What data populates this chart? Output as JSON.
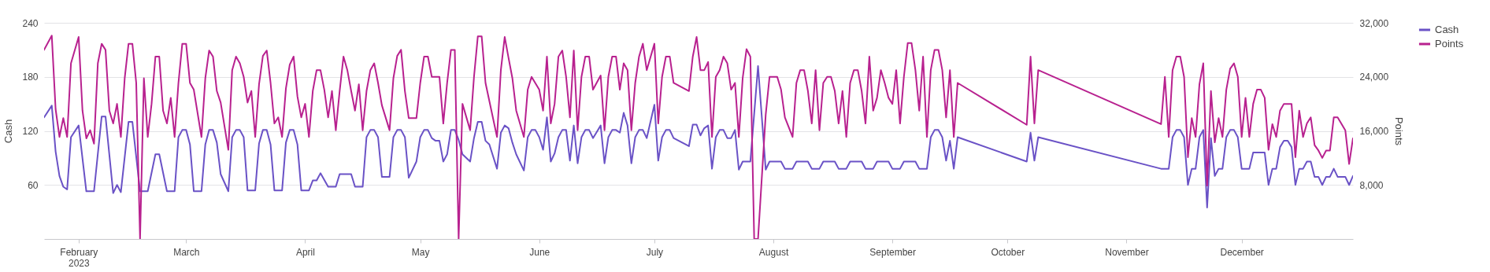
{
  "chart_data": {
    "type": "line",
    "ylabel": "Cash",
    "y2label": "Points",
    "legend": "right",
    "grid": "y",
    "line_style": "solid",
    "xlim": [
      "2023-01-23",
      "2023-12-30"
    ],
    "xticks": [
      {
        "value": "2023-02-01",
        "label": "February\n2023"
      },
      {
        "value": "2023-03-01",
        "label": "March"
      },
      {
        "value": "2023-04-01",
        "label": "April"
      },
      {
        "value": "2023-05-01",
        "label": "May"
      },
      {
        "value": "2023-06-01",
        "label": "June"
      },
      {
        "value": "2023-07-01",
        "label": "July"
      },
      {
        "value": "2023-08-01",
        "label": "August"
      },
      {
        "value": "2023-09-01",
        "label": "September"
      },
      {
        "value": "2023-10-01",
        "label": "October"
      },
      {
        "value": "2023-11-01",
        "label": "November"
      },
      {
        "value": "2023-12-01",
        "label": "December"
      }
    ],
    "ylim": [
      0,
      240
    ],
    "yticks": [
      60,
      120,
      180,
      240
    ],
    "y2lim": [
      0,
      32000
    ],
    "y2ticks": [
      {
        "value": 8000,
        "label": "8,000"
      },
      {
        "value": 16000,
        "label": "16,000"
      },
      {
        "value": 24000,
        "label": "24,000"
      },
      {
        "value": 32000,
        "label": "32,000"
      }
    ],
    "series": [
      {
        "name": "Cash",
        "color": "#6a52c6",
        "x": [
          "2023-01-23",
          "2023-01-25",
          "2023-01-26",
          "2023-01-27",
          "2023-01-28",
          "2023-01-29",
          "2023-01-30",
          "2023-02-01",
          "2023-02-03",
          "2023-02-05",
          "2023-02-07",
          "2023-02-08",
          "2023-02-10",
          "2023-02-11",
          "2023-02-12",
          "2023-02-14",
          "2023-02-15",
          "2023-02-17",
          "2023-02-19",
          "2023-02-21",
          "2023-02-22",
          "2023-02-24",
          "2023-02-26",
          "2023-02-27",
          "2023-02-28",
          "2023-03-01",
          "2023-03-02",
          "2023-03-03",
          "2023-03-05",
          "2023-03-06",
          "2023-03-07",
          "2023-03-08",
          "2023-03-09",
          "2023-03-10",
          "2023-03-12",
          "2023-03-13",
          "2023-03-14",
          "2023-03-15",
          "2023-03-16",
          "2023-03-17",
          "2023-03-19",
          "2023-03-20",
          "2023-03-21",
          "2023-03-22",
          "2023-03-23",
          "2023-03-24",
          "2023-03-26",
          "2023-03-27",
          "2023-03-28",
          "2023-03-29",
          "2023-03-30",
          "2023-03-31",
          "2023-04-02",
          "2023-04-03",
          "2023-04-04",
          "2023-04-05",
          "2023-04-07",
          "2023-04-09",
          "2023-04-10",
          "2023-04-13",
          "2023-04-14",
          "2023-04-16",
          "2023-04-17",
          "2023-04-18",
          "2023-04-19",
          "2023-04-20",
          "2023-04-21",
          "2023-04-23",
          "2023-04-24",
          "2023-04-25",
          "2023-04-26",
          "2023-04-27",
          "2023-04-28",
          "2023-04-30",
          "2023-05-01",
          "2023-05-02",
          "2023-05-03",
          "2023-05-04",
          "2023-05-05",
          "2023-05-06",
          "2023-05-07",
          "2023-05-08",
          "2023-05-09",
          "2023-05-10",
          "2023-05-11",
          "2023-05-12",
          "2023-05-14",
          "2023-05-15",
          "2023-05-16",
          "2023-05-17",
          "2023-05-18",
          "2023-05-19",
          "2023-05-21",
          "2023-05-22",
          "2023-05-23",
          "2023-05-24",
          "2023-05-25",
          "2023-05-26",
          "2023-05-28",
          "2023-05-29",
          "2023-05-30",
          "2023-05-31",
          "2023-06-01",
          "2023-06-02",
          "2023-06-03",
          "2023-06-04",
          "2023-06-05",
          "2023-06-06",
          "2023-06-07",
          "2023-06-08",
          "2023-06-09",
          "2023-06-10",
          "2023-06-11",
          "2023-06-12",
          "2023-06-13",
          "2023-06-14",
          "2023-06-15",
          "2023-06-16",
          "2023-06-17",
          "2023-06-18",
          "2023-06-19",
          "2023-06-20",
          "2023-06-21",
          "2023-06-22",
          "2023-06-23",
          "2023-06-24",
          "2023-06-25",
          "2023-06-26",
          "2023-06-27",
          "2023-06-28",
          "2023-06-29",
          "2023-07-01",
          "2023-07-02",
          "2023-07-03",
          "2023-07-04",
          "2023-07-05",
          "2023-07-06",
          "2023-07-10",
          "2023-07-11",
          "2023-07-12",
          "2023-07-13",
          "2023-07-14",
          "2023-07-15",
          "2023-07-16",
          "2023-07-17",
          "2023-07-18",
          "2023-07-19",
          "2023-07-20",
          "2023-07-21",
          "2023-07-22",
          "2023-07-23",
          "2023-07-24",
          "2023-07-26",
          "2023-07-28",
          "2023-07-30",
          "2023-07-31",
          "2023-08-03",
          "2023-08-04",
          "2023-08-06",
          "2023-08-07",
          "2023-08-10",
          "2023-08-11",
          "2023-08-13",
          "2023-08-14",
          "2023-08-17",
          "2023-08-18",
          "2023-08-20",
          "2023-08-21",
          "2023-08-24",
          "2023-08-25",
          "2023-08-27",
          "2023-08-28",
          "2023-08-31",
          "2023-09-01",
          "2023-09-03",
          "2023-09-04",
          "2023-09-07",
          "2023-09-08",
          "2023-09-10",
          "2023-09-11",
          "2023-09-12",
          "2023-09-13",
          "2023-09-14",
          "2023-09-15",
          "2023-09-16",
          "2023-09-17",
          "2023-09-18",
          "2023-10-06",
          "2023-10-07",
          "2023-10-08",
          "2023-10-09",
          "2023-11-10",
          "2023-11-12",
          "2023-11-13",
          "2023-11-14",
          "2023-11-15",
          "2023-11-16",
          "2023-11-17",
          "2023-11-18",
          "2023-11-19",
          "2023-11-20",
          "2023-11-21",
          "2023-11-22",
          "2023-11-23",
          "2023-11-24",
          "2023-11-25",
          "2023-11-26",
          "2023-11-27",
          "2023-11-28",
          "2023-11-29",
          "2023-11-30",
          "2023-12-01",
          "2023-12-03",
          "2023-12-04",
          "2023-12-07",
          "2023-12-08",
          "2023-12-09",
          "2023-12-10",
          "2023-12-11",
          "2023-12-12",
          "2023-12-13",
          "2023-12-14",
          "2023-12-15",
          "2023-12-16",
          "2023-12-17",
          "2023-12-18",
          "2023-12-19",
          "2023-12-20",
          "2023-12-21",
          "2023-12-22",
          "2023-12-23",
          "2023-12-24",
          "2023-12-25",
          "2023-12-26",
          "2023-12-28",
          "2023-12-29",
          "2023-12-30"
        ],
        "values": [
          135,
          148,
          97,
          70,
          58,
          55,
          113,
          126,
          53,
          53,
          136,
          136,
          51,
          60,
          52,
          130,
          130,
          53,
          53,
          94,
          94,
          53,
          53,
          113,
          121,
          121,
          105,
          53,
          53,
          105,
          121,
          121,
          107,
          72,
          53,
          113,
          121,
          121,
          113,
          54,
          54,
          106,
          121,
          121,
          105,
          54,
          54,
          107,
          121,
          121,
          105,
          54,
          54,
          65,
          65,
          73,
          58,
          58,
          72,
          72,
          58,
          58,
          113,
          121,
          121,
          113,
          69,
          69,
          113,
          121,
          121,
          113,
          68,
          86,
          113,
          121,
          121,
          112,
          109,
          109,
          86,
          94,
          121,
          121,
          110,
          94,
          86,
          112,
          130,
          130,
          109,
          105,
          78,
          118,
          126,
          123,
          107,
          94,
          76,
          113,
          121,
          121,
          113,
          99,
          135,
          86,
          95,
          113,
          121,
          121,
          87,
          126,
          84,
          113,
          121,
          121,
          112,
          119,
          126,
          84,
          113,
          121,
          121,
          118,
          140,
          126,
          84,
          113,
          121,
          121,
          112,
          149,
          87,
          113,
          121,
          121,
          112,
          103,
          127,
          127,
          115,
          123,
          126,
          78,
          113,
          121,
          121,
          112,
          112,
          121,
          77,
          86,
          86,
          192,
          77,
          86,
          86,
          78,
          78,
          86,
          86,
          78,
          78,
          86,
          86,
          78,
          78,
          86,
          86,
          78,
          78,
          86,
          86,
          78,
          78,
          86,
          86,
          78,
          78,
          113,
          121,
          121,
          113,
          87,
          109,
          78,
          113,
          86,
          118,
          87,
          113,
          78,
          78,
          113,
          121,
          121,
          113,
          60,
          78,
          78,
          113,
          121,
          35,
          112,
          70,
          78,
          78,
          113,
          121,
          121,
          113,
          78,
          78,
          96,
          96,
          60,
          78,
          78,
          102,
          109,
          109,
          102,
          60,
          78,
          78,
          86,
          86,
          69,
          69,
          60,
          69,
          69,
          78,
          69,
          69,
          60,
          70
        ]
      },
      {
        "name": "Points",
        "color": "#b8218f",
        "axis": "y2",
        "x": [
          "2023-01-23",
          "2023-01-25",
          "2023-01-26",
          "2023-01-27",
          "2023-01-28",
          "2023-01-29",
          "2023-01-30",
          "2023-02-01",
          "2023-02-02",
          "2023-02-03",
          "2023-02-04",
          "2023-02-05",
          "2023-02-06",
          "2023-02-07",
          "2023-02-08",
          "2023-02-09",
          "2023-02-10",
          "2023-02-11",
          "2023-02-12",
          "2023-02-13",
          "2023-02-14",
          "2023-02-15",
          "2023-02-16",
          "2023-02-17",
          "2023-02-18",
          "2023-02-19",
          "2023-02-20",
          "2023-02-21",
          "2023-02-22",
          "2023-02-23",
          "2023-02-24",
          "2023-02-25",
          "2023-02-26",
          "2023-02-27",
          "2023-02-28",
          "2023-03-01",
          "2023-03-02",
          "2023-03-03",
          "2023-03-05",
          "2023-03-06",
          "2023-03-07",
          "2023-03-08",
          "2023-03-09",
          "2023-03-10",
          "2023-03-12",
          "2023-03-13",
          "2023-03-14",
          "2023-03-15",
          "2023-03-16",
          "2023-03-17",
          "2023-03-18",
          "2023-03-19",
          "2023-03-20",
          "2023-03-21",
          "2023-03-22",
          "2023-03-23",
          "2023-03-24",
          "2023-03-25",
          "2023-03-26",
          "2023-03-27",
          "2023-03-28",
          "2023-03-29",
          "2023-03-30",
          "2023-03-31",
          "2023-04-01",
          "2023-04-02",
          "2023-04-03",
          "2023-04-04",
          "2023-04-05",
          "2023-04-06",
          "2023-04-07",
          "2023-04-08",
          "2023-04-09",
          "2023-04-10",
          "2023-04-11",
          "2023-04-12",
          "2023-04-13",
          "2023-04-14",
          "2023-04-15",
          "2023-04-16",
          "2023-04-17",
          "2023-04-18",
          "2023-04-19",
          "2023-04-20",
          "2023-04-21",
          "2023-04-23",
          "2023-04-24",
          "2023-04-25",
          "2023-04-26",
          "2023-04-27",
          "2023-04-28",
          "2023-04-30",
          "2023-05-01",
          "2023-05-02",
          "2023-05-03",
          "2023-05-04",
          "2023-05-06",
          "2023-05-07",
          "2023-05-08",
          "2023-05-09",
          "2023-05-10",
          "2023-05-11",
          "2023-05-12",
          "2023-05-14",
          "2023-05-15",
          "2023-05-16",
          "2023-05-17",
          "2023-05-18",
          "2023-05-21",
          "2023-05-22",
          "2023-05-23",
          "2023-05-24",
          "2023-05-25",
          "2023-05-26",
          "2023-05-28",
          "2023-05-29",
          "2023-05-30",
          "2023-06-01",
          "2023-06-02",
          "2023-06-03",
          "2023-06-04",
          "2023-06-05",
          "2023-06-06",
          "2023-06-07",
          "2023-06-08",
          "2023-06-09",
          "2023-06-10",
          "2023-06-11",
          "2023-06-12",
          "2023-06-13",
          "2023-06-14",
          "2023-06-15",
          "2023-06-17",
          "2023-06-18",
          "2023-06-19",
          "2023-06-20",
          "2023-06-21",
          "2023-06-22",
          "2023-06-23",
          "2023-06-24",
          "2023-06-25",
          "2023-06-26",
          "2023-06-27",
          "2023-06-28",
          "2023-06-29",
          "2023-07-01",
          "2023-07-02",
          "2023-07-03",
          "2023-07-04",
          "2023-07-05",
          "2023-07-06",
          "2023-07-10",
          "2023-07-11",
          "2023-07-12",
          "2023-07-13",
          "2023-07-14",
          "2023-07-15",
          "2023-07-16",
          "2023-07-17",
          "2023-07-18",
          "2023-07-19",
          "2023-07-20",
          "2023-07-21",
          "2023-07-22",
          "2023-07-23",
          "2023-07-24",
          "2023-07-25",
          "2023-07-26",
          "2023-07-27",
          "2023-07-28",
          "2023-07-30",
          "2023-07-31",
          "2023-08-02",
          "2023-08-03",
          "2023-08-04",
          "2023-08-06",
          "2023-08-07",
          "2023-08-08",
          "2023-08-09",
          "2023-08-10",
          "2023-08-11",
          "2023-08-12",
          "2023-08-13",
          "2023-08-14",
          "2023-08-15",
          "2023-08-16",
          "2023-08-17",
          "2023-08-18",
          "2023-08-19",
          "2023-08-20",
          "2023-08-21",
          "2023-08-22",
          "2023-08-23",
          "2023-08-24",
          "2023-08-25",
          "2023-08-26",
          "2023-08-27",
          "2023-08-28",
          "2023-08-29",
          "2023-08-30",
          "2023-08-31",
          "2023-09-01",
          "2023-09-02",
          "2023-09-03",
          "2023-09-04",
          "2023-09-05",
          "2023-09-06",
          "2023-09-07",
          "2023-09-08",
          "2023-09-09",
          "2023-09-10",
          "2023-09-11",
          "2023-09-12",
          "2023-09-13",
          "2023-09-14",
          "2023-09-15",
          "2023-09-16",
          "2023-09-17",
          "2023-09-18",
          "2023-10-06",
          "2023-10-07",
          "2023-10-08",
          "2023-10-09",
          "2023-11-10",
          "2023-11-11",
          "2023-11-12",
          "2023-11-13",
          "2023-11-14",
          "2023-11-15",
          "2023-11-16",
          "2023-11-17",
          "2023-11-18",
          "2023-11-19",
          "2023-11-20",
          "2023-11-21",
          "2023-11-22",
          "2023-11-23",
          "2023-11-24",
          "2023-11-25",
          "2023-11-26",
          "2023-11-27",
          "2023-11-28",
          "2023-11-29",
          "2023-11-30",
          "2023-12-01",
          "2023-12-02",
          "2023-12-03",
          "2023-12-04",
          "2023-12-05",
          "2023-12-06",
          "2023-12-07",
          "2023-12-08",
          "2023-12-09",
          "2023-12-10",
          "2023-12-11",
          "2023-12-12",
          "2023-12-14",
          "2023-12-15",
          "2023-12-16",
          "2023-12-17",
          "2023-12-18",
          "2023-12-19",
          "2023-12-20",
          "2023-12-21",
          "2023-12-22",
          "2023-12-23",
          "2023-12-24",
          "2023-12-25",
          "2023-12-26",
          "2023-12-28",
          "2023-12-29",
          "2023-12-30"
        ],
        "values": [
          28000,
          30100,
          19200,
          15100,
          17900,
          15100,
          26000,
          29900,
          19000,
          14900,
          16100,
          14100,
          26000,
          28900,
          28000,
          19000,
          17100,
          20000,
          15100,
          23800,
          28900,
          28900,
          23100,
          0,
          23800,
          15100,
          20000,
          27000,
          27000,
          19000,
          17100,
          20900,
          15100,
          23100,
          28900,
          28900,
          23100,
          22100,
          15100,
          23800,
          27900,
          27000,
          21900,
          20200,
          13200,
          25000,
          27000,
          26000,
          24000,
          20200,
          21900,
          15100,
          22900,
          27100,
          27900,
          23100,
          17100,
          18000,
          15100,
          22300,
          25800,
          27000,
          21100,
          18000,
          20000,
          15100,
          21900,
          25000,
          25000,
          22100,
          18000,
          21900,
          16100,
          21900,
          27000,
          25000,
          21900,
          19000,
          22900,
          16100,
          21900,
          25000,
          26000,
          23100,
          19800,
          16100,
          23800,
          27100,
          28000,
          21900,
          17900,
          17900,
          23100,
          27000,
          27000,
          24000,
          24000,
          17100,
          23100,
          28000,
          28000,
          0,
          20000,
          16100,
          24000,
          30000,
          30000,
          23100,
          15100,
          25000,
          29900,
          26800,
          23800,
          19000,
          15100,
          22100,
          24000,
          22100,
          19000,
          27000,
          17100,
          20000,
          27000,
          27900,
          24000,
          18000,
          27900,
          16100,
          24000,
          27000,
          27000,
          22100,
          24200,
          16100,
          24000,
          27000,
          27000,
          22100,
          26000,
          25000,
          16100,
          23100,
          27000,
          28900,
          25000,
          28900,
          17100,
          24000,
          27000,
          27000,
          23100,
          21900,
          27000,
          29900,
          25000,
          25000,
          26200,
          15100,
          24000,
          25000,
          27000,
          26000,
          22100,
          23100,
          15100,
          23800,
          28100,
          27000,
          0,
          0,
          18400,
          24000,
          24000,
          22100,
          18000,
          15100,
          23100,
          25000,
          25000,
          21900,
          17100,
          25000,
          16100,
          23100,
          24000,
          24000,
          21900,
          17100,
          21900,
          15100,
          23100,
          25000,
          25000,
          21900,
          17100,
          27000,
          19000,
          20900,
          25000,
          23100,
          20900,
          20000,
          25000,
          17100,
          24000,
          29000,
          29000,
          25000,
          19000,
          27000,
          15100,
          25000,
          28000,
          28000,
          25000,
          18000,
          25000,
          15100,
          23100,
          16900,
          27000,
          17100,
          25000,
          17000,
          24000,
          15100,
          25000,
          27000,
          27000,
          24000,
          12100,
          17900,
          15100,
          22900,
          26000,
          7900,
          21900,
          14300,
          17900,
          15100,
          22100,
          25200,
          26000,
          24000,
          15100,
          20900,
          15100,
          20000,
          22100,
          22100,
          20900,
          13200,
          17000,
          15100,
          19000,
          20000,
          20000,
          12100,
          19000,
          15100,
          17100,
          18000,
          13900,
          13100,
          12000,
          13100,
          13100,
          18000,
          18000,
          16100,
          11100,
          14900
        ]
      }
    ]
  }
}
